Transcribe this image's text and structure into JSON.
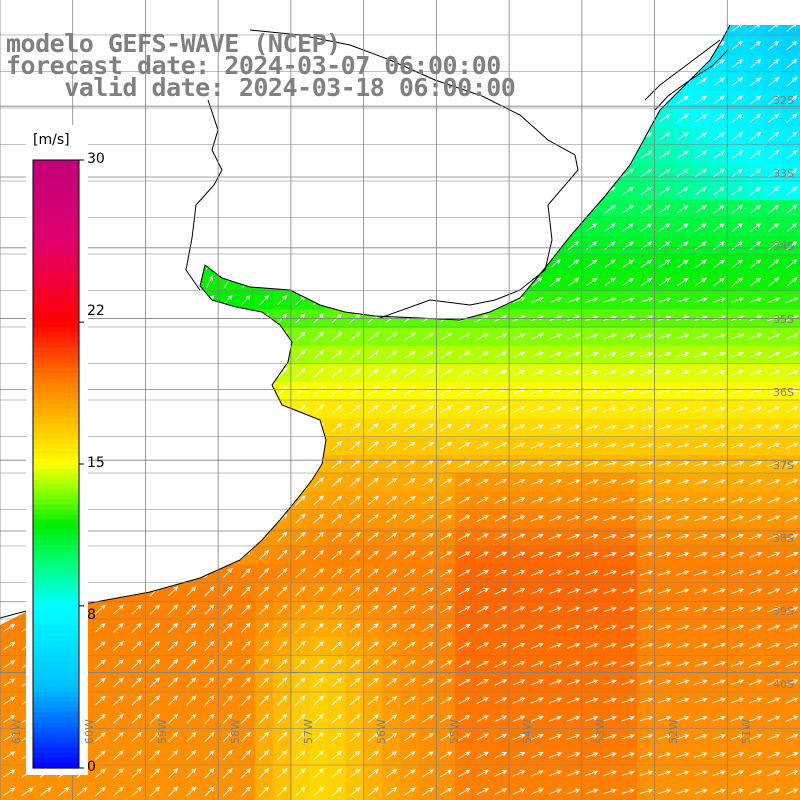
{
  "title": {
    "line1": "modelo GEFS-WAVE (NCEP)",
    "line2": "forecast date: 2024-03-07 06:00:00",
    "line3": "    valid date: 2024-03-18 06:00:00"
  },
  "colorbar": {
    "unit": "[m/s]",
    "ticks": [
      "30",
      "22",
      "15",
      "8",
      "0"
    ],
    "tick_values": [
      30,
      22,
      15,
      8,
      0
    ],
    "min": 0,
    "max": 30,
    "colors": [
      "#0000ff",
      "#00c0ff",
      "#00ffff",
      "#00ff80",
      "#00ee00",
      "#80ff00",
      "#ffff00",
      "#ffc000",
      "#ff8000",
      "#ff4000",
      "#ff0000",
      "#e0006e",
      "#c0007a"
    ],
    "color_stops": [
      0,
      4,
      8,
      10,
      12,
      13.5,
      15,
      17,
      19,
      20.5,
      22,
      26,
      30
    ]
  },
  "map": {
    "lon_range": [
      -61,
      -50
    ],
    "lat_range": [
      -30.5,
      -41.8
    ],
    "lat_labels": [
      "32S",
      "33S",
      "34S",
      "35S",
      "36S",
      "37S",
      "38S",
      "39S",
      "40S"
    ],
    "lat_values": [
      -32,
      -33,
      -34,
      -35,
      -36,
      -37,
      -38,
      -39,
      -40
    ],
    "lon_labels": [
      "61W",
      "60W",
      "59W",
      "58W",
      "57W",
      "56W",
      "55W",
      "54W",
      "53W",
      "52W",
      "51W"
    ],
    "lon_values": [
      -61,
      -60,
      -59,
      -58,
      -57,
      -56,
      -55,
      -54,
      -53,
      -52,
      -51
    ],
    "land_color": "#ffffff",
    "coast_color": "#000000",
    "grid_color": "#808080",
    "arrow_color": "#ffffff"
  }
}
